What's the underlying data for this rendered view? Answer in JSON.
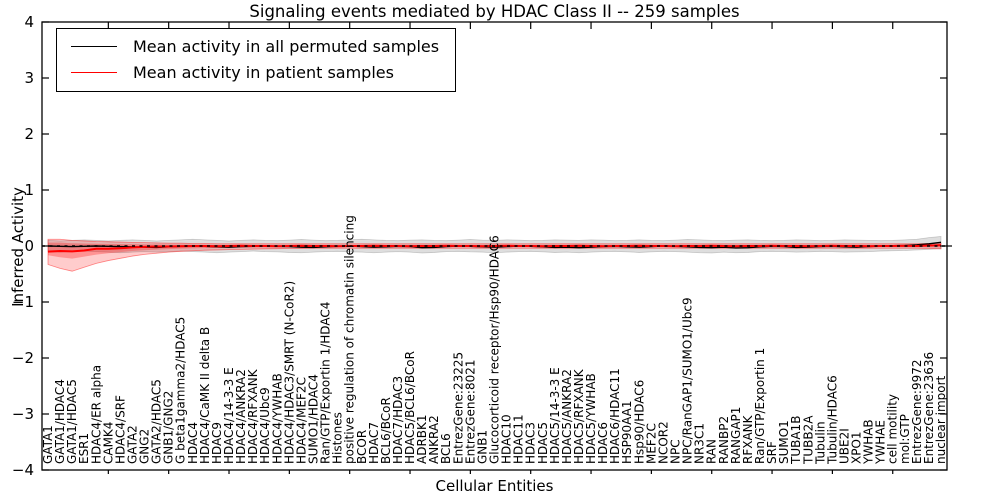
{
  "title": "Signaling events mediated by HDAC Class II -- 259 samples",
  "axes": {
    "xlabel": "Cellular Entities",
    "ylabel": "Inferred Activity",
    "ytick_values": [
      4,
      3,
      2,
      1,
      0,
      -1,
      -2,
      -3,
      -4
    ],
    "ytick_labels": [
      "4",
      "3",
      "2",
      "1",
      "0",
      "−1",
      "−2",
      "−3",
      "−4"
    ]
  },
  "legend": {
    "items": [
      {
        "label": "Mean activity in all permuted samples",
        "color": "#000000"
      },
      {
        "label": "Mean activity in patient samples",
        "color": "#ff0000"
      }
    ]
  },
  "chart_data": {
    "type": "line",
    "title": "Signaling events mediated by HDAC Class II -- 259 samples",
    "xlabel": "Cellular Entities",
    "ylabel": "Inferred Activity",
    "ylim": [
      -4,
      4
    ],
    "grid": false,
    "legend_position": "upper left",
    "zero_line": {
      "style": "dashed",
      "color": "#000000"
    },
    "categories": [
      "GATA1",
      "GATA1/HDAC4",
      "GATA1/HDAC5",
      "ESR1",
      "HDAC4/ER alpha",
      "CAMK4",
      "HDAC4/SRF",
      "GATA2",
      "GNG2",
      "GATA2/HDAC5",
      "GNB1/GNG2",
      "G beta1gamma2/HDAC5",
      "HDAC4",
      "HDAC4/CaMK II delta B",
      "HDAC9",
      "HDAC4/14-3-3 E",
      "HDAC4/ANKRA2",
      "HDAC4/RFXANK",
      "HDAC4/Ubc9",
      "HDAC4/YWHAB",
      "HDAC4/HDAC3/SMRT (N-CoR2)",
      "HDAC4/MEF2C",
      "SUMO1/HDAC4",
      "Ran/GTP/Exportin 1/HDAC4",
      "Histones",
      "positive regulation of chromatin silencing",
      "BCOR",
      "HDAC7",
      "BCL6/BCoR",
      "HDAC7/HDAC3",
      "HDAC5/BCL6/BCoR",
      "ADRBK1",
      "ANKRA2",
      "BCL6",
      "EntrezGene:23225",
      "EntrezGene:8021",
      "GNB1",
      "Glucocorticoid receptor/Hsp90/HDAC6",
      "HDAC10",
      "HDAC11",
      "HDAC3",
      "HDAC5",
      "HDAC5/14-3-3 E",
      "HDAC5/ANKRA2",
      "HDAC5/RFXANK",
      "HDAC5/YWHAB",
      "HDAC6",
      "HDAC6/HDAC11",
      "HSP90AA1",
      "Hsp90/HDAC6",
      "MEF2C",
      "NCOR2",
      "NPC",
      "NPC/RanGAP1/SUMO1/Ubc9",
      "NR3C1",
      "RAN",
      "RANBP2",
      "RANGAP1",
      "RFXANK",
      "Ran/GTP/Exportin 1",
      "SRF",
      "SUMO1",
      "TUBA1B",
      "TUBB2A",
      "Tubulin",
      "Tubulin/HDAC6",
      "UBE2I",
      "XPO1",
      "YWHAB",
      "YWHAE",
      "cell motility",
      "mol:GTP",
      "EntrezGene:9972",
      "EntrezGene:23636",
      "nuclear import"
    ],
    "series": [
      {
        "name": "Mean activity in all permuted samples",
        "color": "#000000",
        "values": [
          0,
          -0.005,
          -0.01,
          -0.005,
          0,
          -0.005,
          -0.01,
          -0.015,
          -0.02,
          -0.025,
          -0.015,
          -0.005,
          0,
          -0.005,
          -0.015,
          -0.02,
          -0.01,
          -0.005,
          0,
          -0.005,
          -0.01,
          -0.02,
          -0.025,
          -0.015,
          -0.005,
          0,
          -0.01,
          -0.02,
          -0.015,
          -0.005,
          -0.01,
          -0.03,
          -0.025,
          -0.01,
          0,
          -0.005,
          -0.015,
          -0.02,
          -0.01,
          0,
          -0.005,
          -0.015,
          -0.025,
          -0.02,
          -0.03,
          -0.02,
          -0.01,
          -0.005,
          -0.015,
          -0.02,
          -0.01,
          0,
          -0.005,
          -0.015,
          -0.025,
          -0.03,
          -0.02,
          -0.035,
          -0.03,
          -0.015,
          -0.005,
          -0.01,
          -0.025,
          -0.02,
          -0.01,
          -0.005,
          -0.015,
          -0.02,
          -0.01,
          0,
          0.005,
          0.01,
          0.02,
          0.04,
          0.065
        ]
      },
      {
        "name": "Mean activity in patient samples",
        "color": "#ff0000",
        "values": [
          -0.1,
          -0.09,
          -0.095,
          -0.08,
          -0.05,
          -0.05,
          -0.04,
          -0.025,
          -0.015,
          -0.01,
          -0.01,
          -0.005,
          0,
          0,
          -0.005,
          0,
          0.005,
          0,
          0,
          -0.005,
          0,
          0.005,
          0,
          0,
          -0.005,
          0,
          0,
          0.005,
          0,
          0,
          -0.005,
          0,
          0,
          0.005,
          0,
          0,
          -0.005,
          0,
          0.005,
          0,
          0,
          -0.005,
          0,
          0,
          0.005,
          0,
          -0.005,
          0,
          0,
          0.005,
          0,
          0,
          -0.005,
          0,
          0,
          0.005,
          0,
          -0.005,
          0,
          0,
          0.005,
          0,
          0,
          -0.005,
          0,
          0.005,
          0,
          0,
          -0.005,
          0,
          0,
          0.005,
          0,
          0.01,
          0.015
        ]
      }
    ],
    "bands": [
      {
        "name": "permuted-samples-range",
        "fill": "rgba(0,0,0,0.13)",
        "edge": "rgba(0,0,0,0.18)",
        "upper": [
          0.1,
          0.09,
          0.1,
          0.11,
          0.1,
          0.09,
          0.1,
          0.11,
          0.1,
          0.09,
          0.1,
          0.11,
          0.12,
          0.11,
          0.1,
          0.09,
          0.1,
          0.11,
          0.1,
          0.095,
          0.105,
          0.115,
          0.105,
          0.095,
          0.1,
          0.11,
          0.12,
          0.11,
          0.1,
          0.095,
          0.105,
          0.11,
          0.1,
          0.095,
          0.105,
          0.115,
          0.105,
          0.1,
          0.11,
          0.105,
          0.095,
          0.1,
          0.11,
          0.105,
          0.1,
          0.11,
          0.105,
          0.095,
          0.1,
          0.11,
          0.1,
          0.095,
          0.105,
          0.115,
          0.11,
          0.1,
          0.095,
          0.105,
          0.11,
          0.1,
          0.095,
          0.1,
          0.11,
          0.105,
          0.095,
          0.1,
          0.11,
          0.105,
          0.1,
          0.095,
          0.1,
          0.11,
          0.12,
          0.15,
          0.17
        ],
        "lower": [
          -0.1,
          -0.11,
          -0.1,
          -0.09,
          -0.1,
          -0.11,
          -0.12,
          -0.11,
          -0.1,
          -0.11,
          -0.1,
          -0.09,
          -0.1,
          -0.11,
          -0.12,
          -0.11,
          -0.1,
          -0.09,
          -0.1,
          -0.105,
          -0.115,
          -0.12,
          -0.11,
          -0.1,
          -0.095,
          -0.105,
          -0.11,
          -0.12,
          -0.11,
          -0.1,
          -0.11,
          -0.125,
          -0.115,
          -0.1,
          -0.095,
          -0.105,
          -0.11,
          -0.12,
          -0.11,
          -0.1,
          -0.095,
          -0.105,
          -0.115,
          -0.11,
          -0.12,
          -0.11,
          -0.1,
          -0.095,
          -0.105,
          -0.115,
          -0.105,
          -0.095,
          -0.1,
          -0.11,
          -0.12,
          -0.125,
          -0.11,
          -0.12,
          -0.115,
          -0.1,
          -0.095,
          -0.1,
          -0.11,
          -0.105,
          -0.095,
          -0.1,
          -0.11,
          -0.105,
          -0.1,
          -0.09,
          -0.085,
          -0.08,
          -0.07,
          -0.06,
          -0.05
        ]
      },
      {
        "name": "patient-samples-range",
        "fill": "rgba(255,0,0,0.20)",
        "edge": "rgba(255,0,0,0.45)",
        "inner_factor": 0.5,
        "inner_fill": "rgba(255,0,0,0.28)",
        "upper": [
          0.12,
          0.12,
          0.1,
          0.09,
          0.08,
          0.075,
          0.07,
          0.065,
          0.06,
          0.055,
          0.05,
          0.05,
          0.045,
          0.045,
          0.04,
          0.04,
          0.04,
          0.04,
          0.04,
          0.04,
          0.04,
          0.04,
          0.04,
          0.04,
          0.04,
          0.04,
          0.04,
          0.04,
          0.04,
          0.04,
          0.04,
          0.04,
          0.04,
          0.04,
          0.04,
          0.04,
          0.04,
          0.04,
          0.04,
          0.04,
          0.04,
          0.04,
          0.04,
          0.04,
          0.04,
          0.04,
          0.04,
          0.04,
          0.04,
          0.04,
          0.04,
          0.04,
          0.04,
          0.04,
          0.04,
          0.04,
          0.04,
          0.04,
          0.04,
          0.04,
          0.04,
          0.04,
          0.04,
          0.04,
          0.04,
          0.04,
          0.04,
          0.04,
          0.04,
          0.04,
          0.04,
          0.04,
          0.04,
          0.045,
          0.05
        ],
        "lower": [
          -0.33,
          -0.4,
          -0.45,
          -0.38,
          -0.31,
          -0.26,
          -0.22,
          -0.18,
          -0.15,
          -0.13,
          -0.11,
          -0.095,
          -0.085,
          -0.075,
          -0.07,
          -0.065,
          -0.06,
          -0.055,
          -0.05,
          -0.048,
          -0.045,
          -0.045,
          -0.04,
          -0.04,
          -0.04,
          -0.04,
          -0.04,
          -0.04,
          -0.04,
          -0.04,
          -0.04,
          -0.04,
          -0.04,
          -0.04,
          -0.04,
          -0.04,
          -0.04,
          -0.04,
          -0.04,
          -0.04,
          -0.04,
          -0.04,
          -0.04,
          -0.04,
          -0.04,
          -0.04,
          -0.04,
          -0.04,
          -0.04,
          -0.04,
          -0.04,
          -0.04,
          -0.04,
          -0.04,
          -0.04,
          -0.04,
          -0.04,
          -0.04,
          -0.04,
          -0.04,
          -0.04,
          -0.04,
          -0.04,
          -0.04,
          -0.04,
          -0.04,
          -0.04,
          -0.04,
          -0.04,
          -0.04,
          -0.04,
          -0.04,
          -0.04,
          -0.045,
          -0.05
        ]
      }
    ]
  }
}
